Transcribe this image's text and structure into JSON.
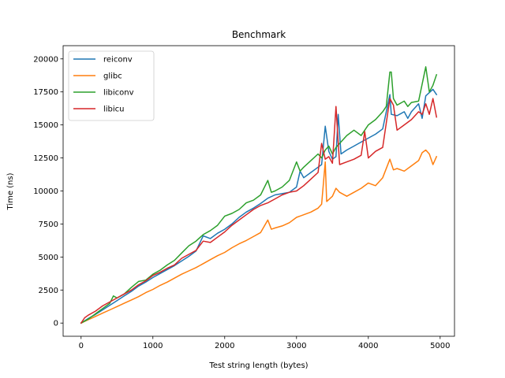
{
  "chart_data": {
    "type": "line",
    "title": "Benchmark",
    "xlabel": "Test string length (bytes)",
    "ylabel": "Time (ns)",
    "xlim": [
      -250,
      5200
    ],
    "ylim": [
      -1000,
      21000
    ],
    "xticks": [
      0,
      1000,
      2000,
      3000,
      4000,
      5000
    ],
    "yticks": [
      0,
      2500,
      5000,
      7500,
      10000,
      12500,
      15000,
      17500,
      20000
    ],
    "grid": false,
    "legend_position": "top-left",
    "series": [
      {
        "name": "reiconv",
        "color": "#1f77b4",
        "points": [
          [
            0,
            0
          ],
          [
            100,
            350
          ],
          [
            200,
            650
          ],
          [
            300,
            1000
          ],
          [
            400,
            1350
          ],
          [
            500,
            1700
          ],
          [
            600,
            2050
          ],
          [
            700,
            2400
          ],
          [
            800,
            2800
          ],
          [
            900,
            3100
          ],
          [
            1000,
            3450
          ],
          [
            1100,
            3750
          ],
          [
            1200,
            4050
          ],
          [
            1300,
            4350
          ],
          [
            1400,
            4700
          ],
          [
            1500,
            5050
          ],
          [
            1600,
            5450
          ],
          [
            1700,
            6600
          ],
          [
            1800,
            6400
          ],
          [
            1900,
            6800
          ],
          [
            2000,
            7100
          ],
          [
            2100,
            7500
          ],
          [
            2200,
            8000
          ],
          [
            2300,
            8400
          ],
          [
            2400,
            8700
          ],
          [
            2500,
            9050
          ],
          [
            2600,
            9450
          ],
          [
            2700,
            9700
          ],
          [
            2800,
            9800
          ],
          [
            2900,
            9900
          ],
          [
            3000,
            10300
          ],
          [
            3050,
            11500
          ],
          [
            3100,
            11000
          ],
          [
            3200,
            11400
          ],
          [
            3300,
            11800
          ],
          [
            3350,
            12000
          ],
          [
            3400,
            14900
          ],
          [
            3450,
            13000
          ],
          [
            3500,
            12400
          ],
          [
            3550,
            12600
          ],
          [
            3580,
            15800
          ],
          [
            3620,
            12800
          ],
          [
            3700,
            13100
          ],
          [
            3800,
            13400
          ],
          [
            3900,
            13700
          ],
          [
            4000,
            14000
          ],
          [
            4100,
            14300
          ],
          [
            4200,
            14700
          ],
          [
            4300,
            17300
          ],
          [
            4320,
            15800
          ],
          [
            4400,
            15700
          ],
          [
            4500,
            16000
          ],
          [
            4550,
            15500
          ],
          [
            4600,
            16000
          ],
          [
            4700,
            16600
          ],
          [
            4750,
            15500
          ],
          [
            4800,
            17200
          ],
          [
            4900,
            17700
          ],
          [
            4950,
            17300
          ]
        ]
      },
      {
        "name": "glibc",
        "color": "#ff7f0e",
        "points": [
          [
            0,
            0
          ],
          [
            100,
            250
          ],
          [
            200,
            500
          ],
          [
            300,
            750
          ],
          [
            400,
            1000
          ],
          [
            500,
            1250
          ],
          [
            600,
            1500
          ],
          [
            700,
            1750
          ],
          [
            800,
            2000
          ],
          [
            900,
            2300
          ],
          [
            1000,
            2550
          ],
          [
            1100,
            2850
          ],
          [
            1200,
            3100
          ],
          [
            1300,
            3400
          ],
          [
            1400,
            3700
          ],
          [
            1500,
            3950
          ],
          [
            1600,
            4200
          ],
          [
            1700,
            4500
          ],
          [
            1800,
            4800
          ],
          [
            1900,
            5100
          ],
          [
            2000,
            5350
          ],
          [
            2100,
            5700
          ],
          [
            2200,
            6000
          ],
          [
            2300,
            6250
          ],
          [
            2400,
            6550
          ],
          [
            2500,
            6850
          ],
          [
            2600,
            7800
          ],
          [
            2650,
            7100
          ],
          [
            2700,
            7200
          ],
          [
            2800,
            7350
          ],
          [
            2900,
            7600
          ],
          [
            3000,
            8000
          ],
          [
            3100,
            8200
          ],
          [
            3200,
            8400
          ],
          [
            3300,
            8700
          ],
          [
            3350,
            9000
          ],
          [
            3400,
            12200
          ],
          [
            3420,
            9200
          ],
          [
            3500,
            9600
          ],
          [
            3550,
            10200
          ],
          [
            3600,
            9900
          ],
          [
            3700,
            9600
          ],
          [
            3800,
            9900
          ],
          [
            3900,
            10200
          ],
          [
            4000,
            10600
          ],
          [
            4100,
            10400
          ],
          [
            4200,
            11000
          ],
          [
            4300,
            12400
          ],
          [
            4350,
            11600
          ],
          [
            4400,
            11700
          ],
          [
            4500,
            11500
          ],
          [
            4600,
            11900
          ],
          [
            4700,
            12300
          ],
          [
            4750,
            12900
          ],
          [
            4800,
            13100
          ],
          [
            4850,
            12800
          ],
          [
            4900,
            12000
          ],
          [
            4950,
            12600
          ]
        ]
      },
      {
        "name": "libiconv",
        "color": "#2ca02c",
        "points": [
          [
            0,
            0
          ],
          [
            100,
            300
          ],
          [
            200,
            700
          ],
          [
            300,
            1100
          ],
          [
            400,
            1500
          ],
          [
            450,
            2050
          ],
          [
            500,
            1900
          ],
          [
            600,
            2200
          ],
          [
            700,
            2700
          ],
          [
            800,
            3150
          ],
          [
            900,
            3250
          ],
          [
            1000,
            3700
          ],
          [
            1100,
            4000
          ],
          [
            1200,
            4400
          ],
          [
            1300,
            4750
          ],
          [
            1400,
            5300
          ],
          [
            1500,
            5850
          ],
          [
            1600,
            6200
          ],
          [
            1700,
            6700
          ],
          [
            1800,
            7000
          ],
          [
            1900,
            7400
          ],
          [
            2000,
            8100
          ],
          [
            2100,
            8300
          ],
          [
            2200,
            8600
          ],
          [
            2300,
            9100
          ],
          [
            2400,
            9300
          ],
          [
            2500,
            9700
          ],
          [
            2600,
            10800
          ],
          [
            2650,
            9900
          ],
          [
            2700,
            10000
          ],
          [
            2800,
            10300
          ],
          [
            2900,
            10800
          ],
          [
            3000,
            12200
          ],
          [
            3050,
            11500
          ],
          [
            3100,
            11800
          ],
          [
            3200,
            12300
          ],
          [
            3300,
            12800
          ],
          [
            3350,
            12500
          ],
          [
            3400,
            13100
          ],
          [
            3450,
            13400
          ],
          [
            3500,
            12800
          ],
          [
            3550,
            13300
          ],
          [
            3600,
            13600
          ],
          [
            3700,
            14200
          ],
          [
            3800,
            14600
          ],
          [
            3900,
            14200
          ],
          [
            4000,
            15000
          ],
          [
            4100,
            15400
          ],
          [
            4200,
            16000
          ],
          [
            4250,
            16400
          ],
          [
            4300,
            19000
          ],
          [
            4320,
            19000
          ],
          [
            4350,
            17000
          ],
          [
            4400,
            16500
          ],
          [
            4500,
            16800
          ],
          [
            4550,
            16400
          ],
          [
            4600,
            16700
          ],
          [
            4700,
            16800
          ],
          [
            4800,
            19400
          ],
          [
            4850,
            17500
          ],
          [
            4900,
            18000
          ],
          [
            4950,
            18800
          ]
        ]
      },
      {
        "name": "libicu",
        "color": "#d62728",
        "points": [
          [
            0,
            0
          ],
          [
            50,
            400
          ],
          [
            100,
            600
          ],
          [
            200,
            900
          ],
          [
            300,
            1300
          ],
          [
            400,
            1600
          ],
          [
            500,
            1900
          ],
          [
            600,
            2200
          ],
          [
            700,
            2500
          ],
          [
            800,
            2900
          ],
          [
            900,
            3200
          ],
          [
            1000,
            3600
          ],
          [
            1100,
            3850
          ],
          [
            1200,
            4150
          ],
          [
            1300,
            4400
          ],
          [
            1400,
            4900
          ],
          [
            1500,
            5200
          ],
          [
            1600,
            5500
          ],
          [
            1700,
            6200
          ],
          [
            1800,
            6100
          ],
          [
            1900,
            6500
          ],
          [
            2000,
            6900
          ],
          [
            2100,
            7400
          ],
          [
            2200,
            7800
          ],
          [
            2300,
            8200
          ],
          [
            2400,
            8600
          ],
          [
            2500,
            8900
          ],
          [
            2600,
            9100
          ],
          [
            2700,
            9400
          ],
          [
            2800,
            9700
          ],
          [
            2900,
            9900
          ],
          [
            3000,
            10000
          ],
          [
            3100,
            10400
          ],
          [
            3200,
            10900
          ],
          [
            3300,
            11400
          ],
          [
            3350,
            13600
          ],
          [
            3400,
            12400
          ],
          [
            3450,
            12600
          ],
          [
            3500,
            12100
          ],
          [
            3550,
            16400
          ],
          [
            3600,
            12000
          ],
          [
            3700,
            12200
          ],
          [
            3800,
            12400
          ],
          [
            3900,
            12700
          ],
          [
            3950,
            14500
          ],
          [
            4000,
            12500
          ],
          [
            4100,
            13000
          ],
          [
            4200,
            13300
          ],
          [
            4300,
            17000
          ],
          [
            4350,
            16500
          ],
          [
            4400,
            14600
          ],
          [
            4500,
            15000
          ],
          [
            4600,
            15400
          ],
          [
            4700,
            16000
          ],
          [
            4750,
            15800
          ],
          [
            4800,
            16600
          ],
          [
            4850,
            15800
          ],
          [
            4900,
            17000
          ],
          [
            4950,
            15600
          ]
        ]
      }
    ]
  }
}
